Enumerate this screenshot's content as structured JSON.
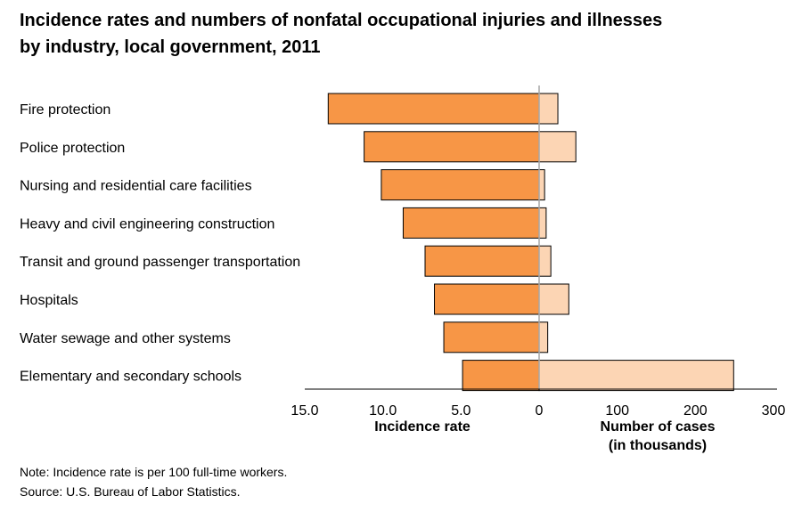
{
  "title": {
    "line1": "Incidence rates and numbers of nonfatal occupational injuries and illnesses",
    "line2": "by industry, local government, 2011"
  },
  "note": {
    "line1": "Note: Incidence rate is per 100 full-time workers.",
    "line2": "Source: U.S. Bureau of Labor Statistics."
  },
  "chart_data": {
    "type": "bar",
    "title": "Incidence rates and numbers of nonfatal occupational injuries and illnesses by industry, local government, 2011",
    "categories": [
      "Fire protection",
      "Police protection",
      "Nursing and residential care facilities",
      "Heavy and civil engineering construction",
      "Transit and ground passenger transportation",
      "Hospitals",
      "Water sewage and other systems",
      "Elementary and secondary schools"
    ],
    "series": [
      {
        "name": "Incidence rate",
        "values": [
          13.5,
          11.2,
          10.1,
          8.7,
          7.3,
          6.7,
          6.1,
          4.9
        ],
        "color": "#f79646",
        "xlim": [
          15.0,
          0
        ],
        "ticks": [
          "15.0",
          "10.0",
          "5.0",
          "0"
        ],
        "axis_label": [
          "Incidence rate"
        ]
      },
      {
        "name": "Number of cases (in thousands)",
        "values": [
          24,
          47,
          7,
          9,
          15,
          38,
          11,
          249
        ],
        "color": "#fcd5b4",
        "xlim": [
          0,
          300
        ],
        "ticks": [
          "100",
          "200",
          "300"
        ],
        "axis_label": [
          "Number of cases",
          "(in thousands)"
        ]
      }
    ],
    "grid": false,
    "legend": "none"
  }
}
